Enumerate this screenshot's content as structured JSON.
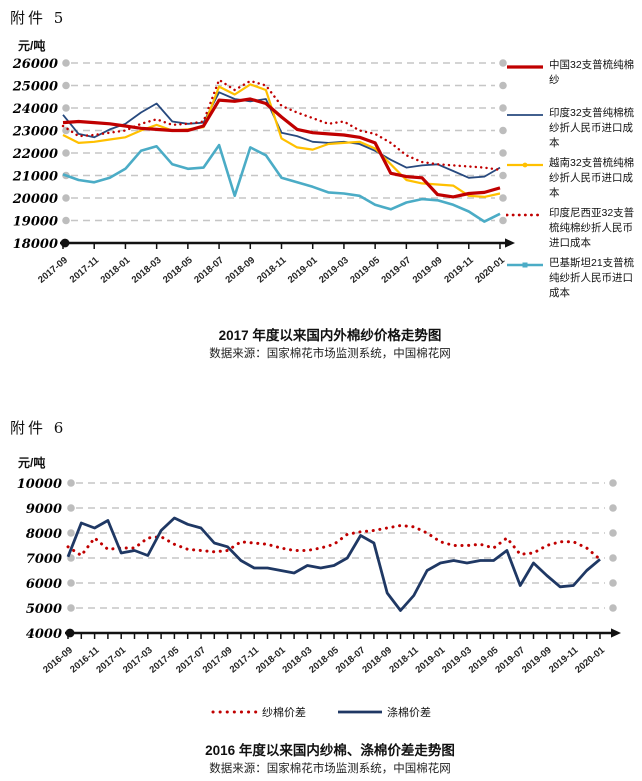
{
  "attachment5": {
    "label": "附件 5"
  },
  "attachment6": {
    "label": "附件 6"
  },
  "colors": {
    "red": "#C00000",
    "navy": "#27497E",
    "dark_navy": "#1F3864",
    "gold": "#FFC000",
    "teal": "#4BACC6",
    "grid": "#C6C6C6",
    "grid_dot": "#BDBDBD",
    "axis": "#111111"
  },
  "chart_data": [
    {
      "type": "line",
      "unit_label": "元/吨",
      "title": "2017 年度以来国内外棉纱价格走势图",
      "source": "数据来源：国家棉花市场监测系统，中国棉花网",
      "ylim": [
        18000,
        26000
      ],
      "yticks": [
        26000,
        25000,
        24000,
        23000,
        22000,
        21000,
        20000,
        19000,
        18000
      ],
      "grid": "horizontal-dashed",
      "legend_position": "right",
      "x": [
        "2017-09",
        "2017-10",
        "2017-11",
        "2017-12",
        "2018-01",
        "2018-02",
        "2018-03",
        "2018-04",
        "2018-05",
        "2018-06",
        "2018-07",
        "2018-08",
        "2018-09",
        "2018-10",
        "2018-11",
        "2018-12",
        "2019-01",
        "2019-02",
        "2019-03",
        "2019-04",
        "2019-05",
        "2019-06",
        "2019-07",
        "2019-08",
        "2019-09",
        "2019-10",
        "2019-11",
        "2019-12",
        "2020-01"
      ],
      "xtick_labels": [
        "2017-09",
        "2017-11",
        "2018-01",
        "2018-03",
        "2018-05",
        "2018-07",
        "2018-09",
        "2018-11",
        "2019-01",
        "2019-03",
        "2019-05",
        "2019-07",
        "2019-09",
        "2019-11",
        "2020-01"
      ],
      "series": [
        {
          "name": "中国32支普梳纯棉纱",
          "color": "#C00000",
          "style": "solid",
          "width": 3.2,
          "marker": "none",
          "values": [
            23350,
            23400,
            23350,
            23300,
            23200,
            23100,
            23050,
            23000,
            23000,
            23200,
            24350,
            24300,
            24400,
            24200,
            23600,
            23050,
            22900,
            22850,
            22800,
            22700,
            22450,
            21100,
            20950,
            20900,
            20150,
            20050,
            20200,
            20250,
            20450
          ]
        },
        {
          "name": "印度32支普纯棉梳纱折人民币进口成本",
          "color": "#27497E",
          "style": "solid",
          "width": 1.8,
          "marker": "none",
          "values": [
            23700,
            22850,
            22700,
            23050,
            23300,
            23800,
            24200,
            23400,
            23300,
            23350,
            24700,
            24400,
            24300,
            24400,
            22900,
            22750,
            22500,
            22450,
            22500,
            22400,
            22100,
            21700,
            21350,
            21450,
            21500,
            21200,
            20900,
            20950,
            21350
          ]
        },
        {
          "name": "越南32支普梳纯棉纱折人民币进口成本",
          "color": "#FFC000",
          "style": "solid",
          "width": 2.2,
          "marker": "dot",
          "values": [
            22800,
            22450,
            22500,
            22600,
            22700,
            23000,
            23250,
            23000,
            23050,
            23150,
            24950,
            24600,
            25050,
            24800,
            22650,
            22250,
            22150,
            22400,
            22450,
            22500,
            22200,
            21500,
            20800,
            20650,
            20600,
            20550,
            20100,
            20050,
            20200
          ]
        },
        {
          "name": "印度尼西亚32支普梳纯棉纱折人民币进口成本",
          "color": "#C00000",
          "style": "dotted",
          "width": 2.4,
          "marker": "none",
          "values": [
            23200,
            22750,
            22800,
            22900,
            23000,
            23300,
            23500,
            23250,
            23300,
            23400,
            25250,
            24800,
            25200,
            25000,
            24100,
            23800,
            23550,
            23300,
            23400,
            23000,
            22850,
            22450,
            21900,
            21600,
            21500,
            21450,
            21400,
            21350,
            21250
          ]
        },
        {
          "name": "巴基斯坦21支普梳纯纱折人民币进口成本",
          "color": "#4BACC6",
          "style": "solid",
          "width": 2.6,
          "marker": "square",
          "values": [
            21050,
            20800,
            20700,
            20900,
            21300,
            22100,
            22300,
            21500,
            21300,
            21350,
            22350,
            20100,
            22250,
            21900,
            20900,
            20700,
            20500,
            20250,
            20200,
            20100,
            19700,
            19500,
            19800,
            19950,
            19900,
            19700,
            19400,
            18950,
            19300
          ]
        }
      ]
    },
    {
      "type": "line",
      "unit_label": "元/吨",
      "title": "2016 年度以来国内纱棉、涤棉价差走势图",
      "source": "数据来源：国家棉花市场监测系统，中国棉花网",
      "ylim": [
        4000,
        10000
      ],
      "yticks": [
        10000,
        9000,
        8000,
        7000,
        6000,
        5000,
        4000
      ],
      "grid": "horizontal-dashed",
      "legend_position": "bottom",
      "x": [
        "2016-09",
        "2016-10",
        "2016-11",
        "2016-12",
        "2017-01",
        "2017-02",
        "2017-03",
        "2017-04",
        "2017-05",
        "2017-06",
        "2017-07",
        "2017-08",
        "2017-09",
        "2017-10",
        "2017-11",
        "2017-12",
        "2018-01",
        "2018-02",
        "2018-03",
        "2018-04",
        "2018-05",
        "2018-06",
        "2018-07",
        "2018-08",
        "2018-09",
        "2018-10",
        "2018-11",
        "2018-12",
        "2019-01",
        "2019-02",
        "2019-03",
        "2019-04",
        "2019-05",
        "2019-06",
        "2019-07",
        "2019-08",
        "2019-09",
        "2019-10",
        "2019-11",
        "2019-12",
        "2020-01"
      ],
      "xtick_labels": [
        "2016-09",
        "2016-11",
        "2017-01",
        "2017-03",
        "2017-05",
        "2017-07",
        "2017-09",
        "2017-11",
        "2018-01",
        "2018-03",
        "2018-05",
        "2018-07",
        "2018-09",
        "2018-11",
        "2019-01",
        "2019-03",
        "2019-05",
        "2019-07",
        "2019-09",
        "2019-11",
        "2020-01"
      ],
      "series": [
        {
          "name": "纱棉价差",
          "color": "#C00000",
          "style": "dotted",
          "width": 3.0,
          "marker": "none",
          "values": [
            7450,
            7100,
            7800,
            7350,
            7400,
            7400,
            7800,
            7850,
            7550,
            7350,
            7300,
            7250,
            7300,
            7650,
            7600,
            7550,
            7400,
            7300,
            7300,
            7400,
            7550,
            7950,
            8050,
            8100,
            8200,
            8300,
            8250,
            8000,
            7650,
            7500,
            7500,
            7550,
            7400,
            7800,
            7150,
            7200,
            7500,
            7650,
            7650,
            7400,
            6950
          ]
        },
        {
          "name": "涤棉价差",
          "color": "#1F3864",
          "style": "solid",
          "width": 2.8,
          "marker": "none",
          "values": [
            7050,
            8400,
            8200,
            8500,
            7200,
            7300,
            7100,
            8100,
            8600,
            8350,
            8200,
            7600,
            7450,
            6900,
            6600,
            6600,
            6500,
            6400,
            6700,
            6600,
            6700,
            7000,
            7900,
            7600,
            5600,
            4900,
            5500,
            6500,
            6800,
            6900,
            6800,
            6900,
            6900,
            7300,
            5900,
            6800,
            6300,
            5850,
            5900,
            6500,
            6950
          ]
        }
      ]
    }
  ]
}
